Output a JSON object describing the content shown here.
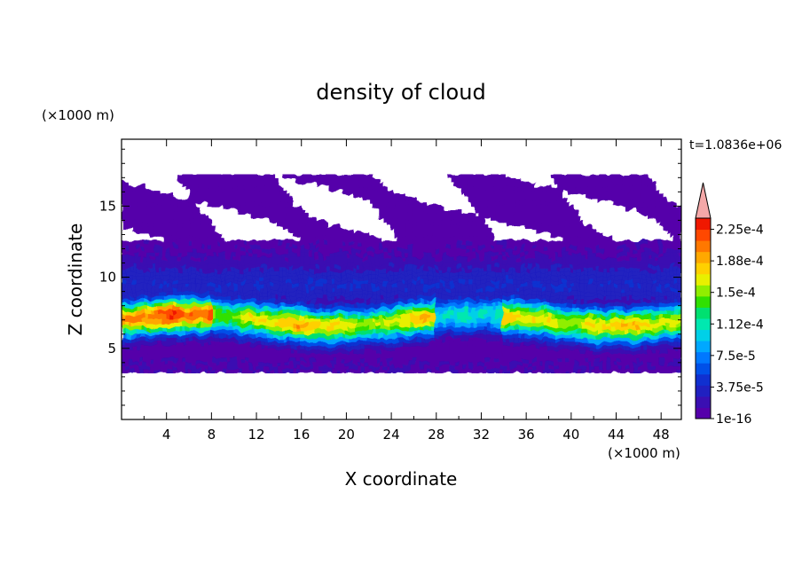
{
  "chart_data": {
    "type": "heatmap",
    "title": "density of cloud",
    "xlabel": "X coordinate",
    "ylabel": "Z coordinate",
    "x_unit": "(×1000 m)",
    "y_unit": "(×1000 m)",
    "time_label": "t=1.0836e+06",
    "xlim": [
      0,
      49.8
    ],
    "ylim": [
      0,
      19.7
    ],
    "x_ticks": [
      4,
      8,
      12,
      16,
      20,
      24,
      28,
      32,
      36,
      40,
      44,
      48
    ],
    "y_ticks": [
      5,
      10,
      15
    ],
    "colorbar": {
      "min": 1e-16,
      "max": 0.000225,
      "extend": "max",
      "labels": [
        "1e-16",
        "3.75e-5",
        "7.5e-5",
        "1.12e-4",
        "1.5e-4",
        "1.88e-4",
        "2.25e-4"
      ],
      "label_values": [
        0,
        3.75e-05,
        7.5e-05,
        0.0001125,
        0.00015,
        0.0001875,
        0.000225
      ],
      "colors": [
        "#5500aa",
        "#3a0fb2",
        "#2020c0",
        "#1030d0",
        "#0050e8",
        "#0078ff",
        "#00a8ff",
        "#00d0e8",
        "#00e8b0",
        "#00e070",
        "#30e000",
        "#90ee00",
        "#e8f000",
        "#ffd000",
        "#ffa800",
        "#ff7800",
        "#ff4800",
        "#f01800"
      ],
      "extend_color": "#f4a8a8"
    },
    "features": [
      {
        "name": "dense cloud band",
        "x_range": [
          0,
          49.8
        ],
        "z_range": [
          4,
          9
        ],
        "peak": 0.0002,
        "peak_x": 5,
        "peak_z": 7.3
      },
      {
        "name": "thin cloud layer",
        "x_range": [
          0,
          49.8
        ],
        "z_range": [
          3.4,
          4.2
        ],
        "peak": 1e-16
      },
      {
        "name": "upper thin layer",
        "x_range": [
          0,
          49.8
        ],
        "z_range": [
          9,
          17
        ],
        "peak": 3.75e-05
      }
    ]
  }
}
